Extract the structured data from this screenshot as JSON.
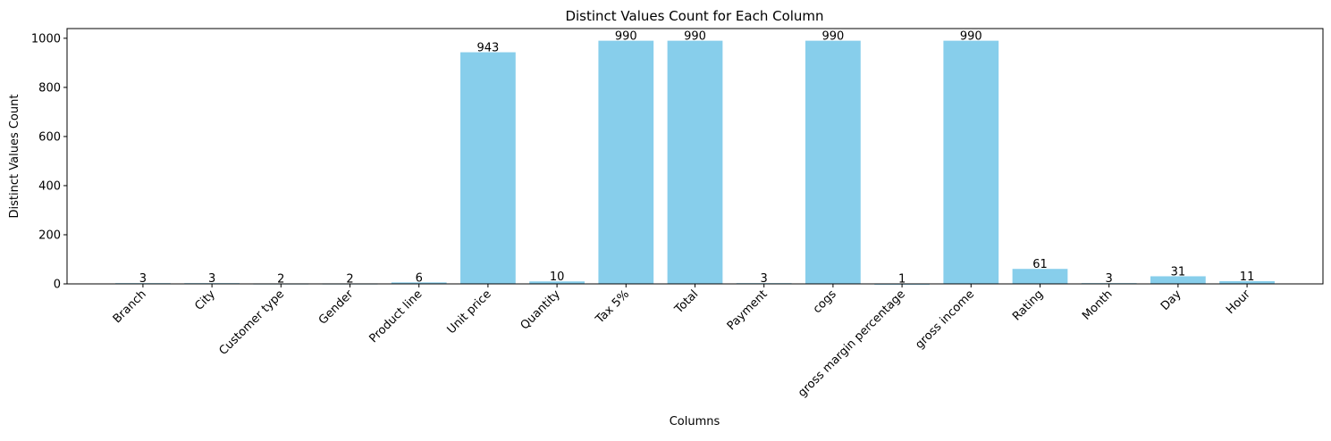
{
  "chart_data": {
    "type": "bar",
    "title": "Distinct Values Count for Each Column",
    "xlabel": "Columns",
    "ylabel": "Distinct Values Count",
    "ylim": [
      0,
      1039.5
    ],
    "yticks": [
      0,
      200,
      400,
      600,
      800,
      1000
    ],
    "grid": false,
    "bar_color": "#87ceeb",
    "categories": [
      "Branch",
      "City",
      "Customer type",
      "Gender",
      "Product line",
      "Unit price",
      "Quantity",
      "Tax 5%",
      "Total",
      "Payment",
      "cogs",
      "gross margin percentage",
      "gross income",
      "Rating",
      "Month",
      "Day",
      "Hour"
    ],
    "values": [
      3,
      3,
      2,
      2,
      6,
      943,
      10,
      990,
      990,
      3,
      990,
      1,
      990,
      61,
      3,
      31,
      11
    ]
  }
}
